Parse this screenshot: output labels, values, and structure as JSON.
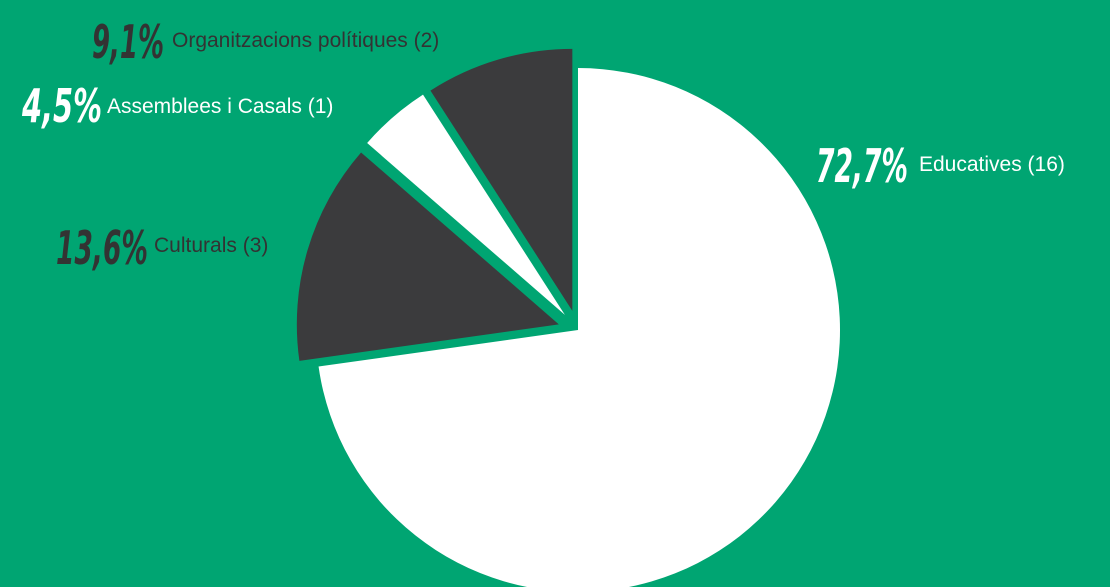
{
  "colors": {
    "background": "#00a572",
    "light_slice": "#ffffff",
    "dark_slice": "#3b3b3d",
    "label_dark": "#333333",
    "label_light": "#ffffff"
  },
  "chart_data": {
    "type": "pie",
    "title": "",
    "slices": [
      {
        "pct_label": "72,7%",
        "label": "Educatives (16)",
        "value": 72.7,
        "count": 16,
        "color": "#ffffff",
        "exploded": false
      },
      {
        "pct_label": "13,6%",
        "label": "Culturals (3)",
        "value": 13.6,
        "count": 3,
        "color": "#3b3b3d",
        "exploded": true
      },
      {
        "pct_label": "4,5%",
        "label": "Assemblees i Casals (1)",
        "value": 4.5,
        "count": 1,
        "color": "#ffffff",
        "exploded": true
      },
      {
        "pct_label": "9,1%",
        "label": "Organitzacions polítiques (2)",
        "value": 9.1,
        "count": 2,
        "color": "#3b3b3d",
        "exploded": true
      }
    ]
  }
}
